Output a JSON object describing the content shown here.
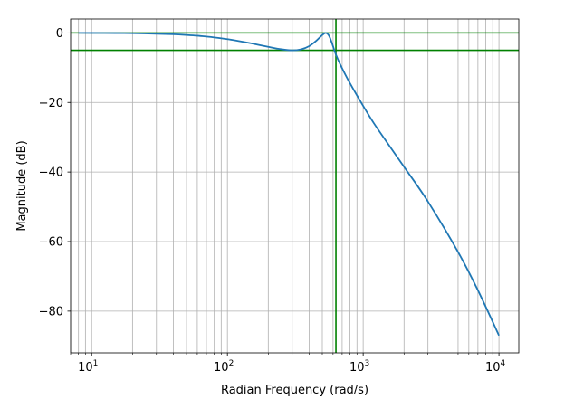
{
  "chart_data": {
    "type": "line",
    "title": "",
    "xlabel": "Radian Frequency (rad/s)",
    "ylabel": "Magnitude (dB)",
    "xscale": "log",
    "xlim": [
      7,
      14000
    ],
    "ylim": [
      -92,
      4
    ],
    "grid": true,
    "grid_minor_x": true,
    "xticks": [
      {
        "value": 10,
        "base": "10",
        "exp": "1"
      },
      {
        "value": 100,
        "base": "10",
        "exp": "2"
      },
      {
        "value": 1000,
        "base": "10",
        "exp": "3"
      },
      {
        "value": 10000,
        "base": "10",
        "exp": "4"
      }
    ],
    "yticks": [
      {
        "value": 0,
        "label": "0"
      },
      {
        "value": -20,
        "label": "−20"
      },
      {
        "value": -40,
        "label": "−40"
      },
      {
        "value": -60,
        "label": "−60"
      },
      {
        "value": -80,
        "label": "−80"
      }
    ],
    "series": [
      {
        "color": "#1f77b4",
        "x": [
          8,
          10,
          15,
          20,
          30,
          40,
          50,
          60,
          70,
          80,
          100,
          120,
          150,
          200,
          250,
          300,
          350,
          400,
          450,
          500,
          530,
          560,
          590,
          620,
          650,
          700,
          800,
          1000,
          1200,
          1500,
          2000,
          3000,
          5000,
          7000,
          10000
        ],
        "y": [
          0,
          -0.02,
          -0.05,
          -0.1,
          -0.25,
          -0.4,
          -0.6,
          -0.8,
          -1.05,
          -1.3,
          -1.8,
          -2.3,
          -3.0,
          -4.0,
          -4.7,
          -5.0,
          -4.7,
          -3.8,
          -2.3,
          -0.6,
          0,
          -0.8,
          -3.0,
          -5.5,
          -7.5,
          -10.2,
          -14.5,
          -21.0,
          -26.0,
          -31.5,
          -38.5,
          -48.5,
          -63.0,
          -74.0,
          -87.0
        ]
      }
    ],
    "reference_lines": [
      {
        "orientation": "horizontal",
        "value": 0,
        "color": "#008000"
      },
      {
        "orientation": "horizontal",
        "value": -5,
        "color": "#008000"
      },
      {
        "orientation": "vertical",
        "value": 630,
        "color": "#008000"
      }
    ]
  }
}
